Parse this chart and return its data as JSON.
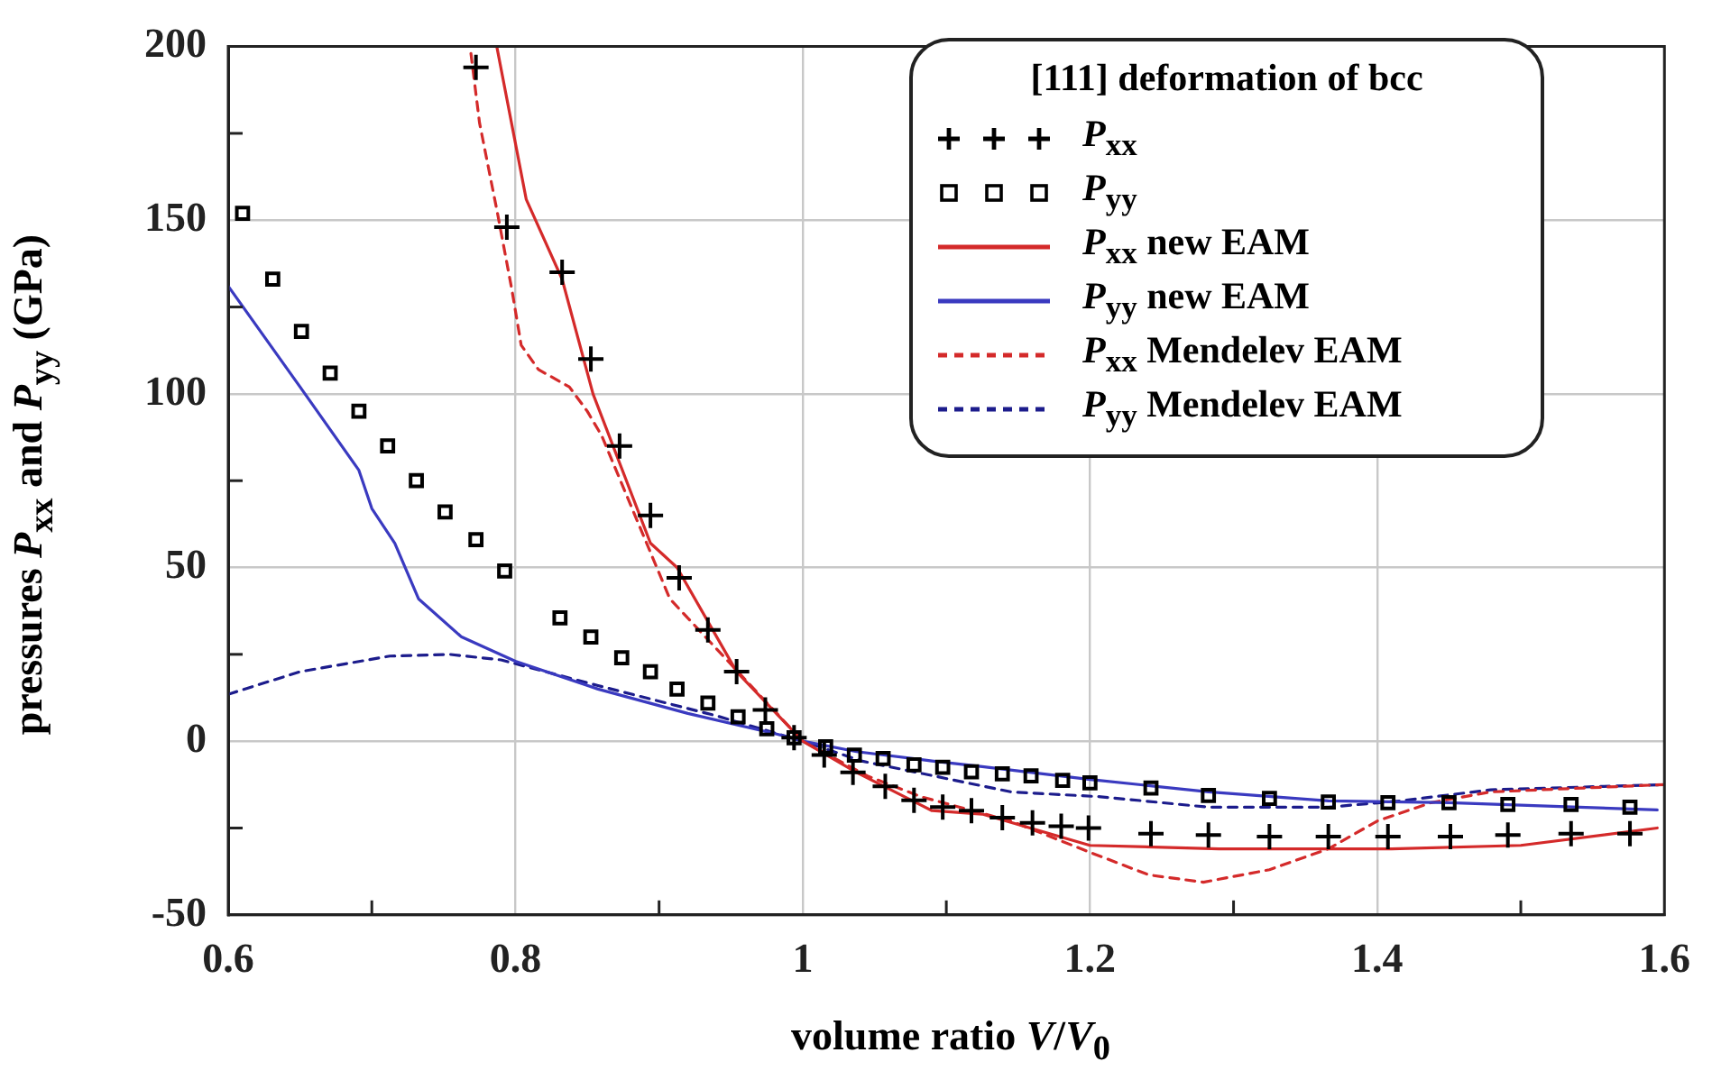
{
  "chart_data": {
    "type": "line",
    "xlabel": "volume ratio V/V$_{0}$",
    "ylabel": "pressures P$_{xx}$ and P$_{yy}$ (GPa)",
    "legend_title": "[111] deformation of bcc",
    "legend": "top right",
    "grid": true,
    "xlim": [
      0.6,
      1.6
    ],
    "xticks": [
      0.6,
      {
        "value": 0.7,
        "label": null
      },
      0.8,
      {
        "value": 0.9,
        "label": null
      },
      1,
      {
        "value": 1.1,
        "label": null
      },
      1.2,
      {
        "value": 1.3,
        "label": null
      },
      1.4,
      {
        "value": 1.5,
        "label": null
      },
      1.6
    ],
    "ylim": [
      -50,
      200
    ],
    "yticks": [
      -50,
      {
        "value": -25,
        "label": null
      },
      0,
      {
        "value": 25,
        "label": null
      },
      50,
      {
        "value": 75,
        "label": null
      },
      100,
      {
        "value": 125,
        "label": null
      },
      150,
      {
        "value": 175,
        "label": null
      },
      200
    ],
    "series": [
      {
        "name": "P$_{xx}$",
        "type": "scatter",
        "marker": "cross",
        "color": "#000000",
        "x": [
          0.7725,
          0.794,
          0.8325,
          0.8525,
          0.8725,
          0.894,
          0.914,
          0.934,
          0.954,
          0.974,
          0.994,
          1.015,
          1.035,
          1.0575,
          1.0775,
          1.0975,
          1.1175,
          1.139,
          1.16,
          1.18,
          1.199,
          1.2425,
          1.2825,
          1.325,
          1.366,
          1.4075,
          1.451,
          1.491,
          1.535,
          1.576
        ],
        "values": [
          194,
          148,
          135,
          110,
          85,
          65,
          47,
          32,
          20,
          9,
          1,
          -4,
          -9,
          -13,
          -17,
          -19,
          -20,
          -22,
          -23.5,
          -24.5,
          -25,
          -26.6,
          -27,
          -27.5,
          -27.5,
          -27.5,
          -27.5,
          -27,
          -26.6,
          -26.6
        ]
      },
      {
        "name": "P$_{yy}$",
        "type": "scatter",
        "marker": "square",
        "color": "#000000",
        "x": [
          0.61,
          0.631,
          0.651,
          0.671,
          0.691,
          0.711,
          0.731,
          0.751,
          0.7725,
          0.7925,
          0.831,
          0.8525,
          0.874,
          0.894,
          0.9125,
          0.934,
          0.955,
          0.975,
          0.994,
          1.016,
          1.036,
          1.056,
          1.0775,
          1.0975,
          1.1175,
          1.139,
          1.159,
          1.181,
          1.2,
          1.2425,
          1.2825,
          1.325,
          1.366,
          1.4075,
          1.45,
          1.491,
          1.535,
          1.576
        ],
        "values": [
          152,
          133,
          118,
          106,
          95,
          85,
          75,
          66,
          58,
          49,
          35.5,
          30,
          24,
          20,
          15,
          11,
          7,
          3.6,
          1,
          -1.6,
          -4,
          -5,
          -6.8,
          -7.5,
          -8.8,
          -9.4,
          -10,
          -11.3,
          -12,
          -13.5,
          -15.6,
          -16.5,
          -17.5,
          -17.7,
          -17.7,
          -18.2,
          -18.2,
          -19
        ]
      },
      {
        "name": "P$_{xx}$ new EAM",
        "type": "line",
        "line_style": "solid",
        "color": "#d42a2a",
        "x": [
          0.787,
          0.8075,
          0.8325,
          0.854,
          0.894,
          0.9125,
          0.954,
          1.0,
          1.0375,
          1.09,
          1.125,
          1.2,
          1.29,
          1.41,
          1.5,
          1.595
        ],
        "values": [
          200,
          156,
          133,
          100,
          57,
          50,
          20,
          0,
          -9,
          -20,
          -21,
          -30,
          -31,
          -31,
          -30,
          -25
        ]
      },
      {
        "name": "P$_{yy}$ new EAM",
        "type": "line",
        "line_style": "solid",
        "color": "#3a3ac0",
        "x": [
          0.6,
          0.65,
          0.691,
          0.7,
          0.716,
          0.7325,
          0.7625,
          0.8,
          0.8575,
          0.92,
          0.9825,
          1.0,
          1.0375,
          1.09,
          1.125,
          1.2,
          1.2825,
          1.366,
          1.45,
          1.595
        ],
        "values": [
          131,
          102,
          78,
          67,
          57,
          41,
          30,
          23,
          15,
          8,
          2,
          0,
          -3,
          -5.7,
          -7.3,
          -11,
          -14.6,
          -17.2,
          -17.7,
          -19.8
        ]
      },
      {
        "name": "P$_{xx}$ Mendelev EAM",
        "type": "line",
        "line_style": "dashed",
        "color": "#d42a2a",
        "x": [
          0.769,
          0.775,
          0.7875,
          0.7975,
          0.804,
          0.816,
          0.8375,
          0.85,
          0.86,
          0.9075,
          1.0,
          1.045,
          1.0825,
          1.145,
          1.2,
          1.241,
          1.279,
          1.325,
          1.366,
          1.4,
          1.4375,
          1.479,
          1.6
        ],
        "values": [
          198,
          178,
          152,
          130,
          114,
          107,
          102,
          95,
          88,
          41,
          0,
          -10,
          -16,
          -23,
          -32,
          -38.5,
          -40.6,
          -37,
          -31,
          -23,
          -17.7,
          -14.6,
          -12.5
        ]
      },
      {
        "name": "P$_{yy}$ Mendelev EAM",
        "type": "line",
        "line_style": "dashed",
        "color": "#1c1c8c",
        "x": [
          0.6,
          0.65,
          0.7125,
          0.754,
          0.79,
          0.8575,
          0.94,
          1.0,
          1.041,
          1.145,
          1.2075,
          1.2825,
          1.366,
          1.416,
          1.479,
          1.6
        ],
        "values": [
          13.5,
          20,
          24.5,
          25,
          23.4,
          16,
          7.3,
          0,
          -5.7,
          -14.6,
          -16,
          -19,
          -19,
          -17.2,
          -14,
          -12.5
        ]
      }
    ]
  }
}
